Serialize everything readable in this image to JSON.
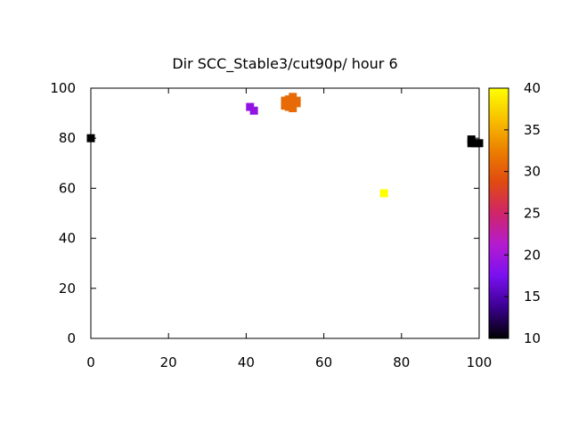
{
  "chart_data": {
    "type": "scatter",
    "title": "Dir SCC_Stable3/cut90p/ hour 6",
    "xlim": [
      0,
      100
    ],
    "ylim": [
      0,
      100
    ],
    "x_ticks": [
      "0",
      "20",
      "40",
      "60",
      "80",
      "100"
    ],
    "y_ticks": [
      "0",
      "20",
      "40",
      "60",
      "80",
      "100"
    ],
    "colorbar": {
      "range": [
        10,
        40
      ],
      "ticks": [
        "10",
        "15",
        "20",
        "25",
        "30",
        "35",
        "40"
      ],
      "palette": [
        "#000000",
        "#3b0090",
        "#7a10f0",
        "#b41bd0",
        "#d0256a",
        "#e04a10",
        "#ec7f00",
        "#f8c000",
        "#ffff00"
      ]
    },
    "grid": false,
    "points": [
      {
        "x": 0,
        "y": 80,
        "value": 10
      },
      {
        "x": 41,
        "y": 92.5,
        "value": 19
      },
      {
        "x": 42,
        "y": 91,
        "value": 19
      },
      {
        "x": 50,
        "y": 93,
        "value": 31
      },
      {
        "x": 50,
        "y": 95,
        "value": 31
      },
      {
        "x": 51,
        "y": 92.5,
        "value": 31
      },
      {
        "x": 51,
        "y": 95.5,
        "value": 31
      },
      {
        "x": 52,
        "y": 92,
        "value": 31
      },
      {
        "x": 52,
        "y": 94,
        "value": 31
      },
      {
        "x": 52,
        "y": 96.5,
        "value": 31
      },
      {
        "x": 53,
        "y": 94,
        "value": 31
      },
      {
        "x": 53,
        "y": 95,
        "value": 31
      },
      {
        "x": 75.5,
        "y": 58,
        "value": 40
      },
      {
        "x": 98,
        "y": 79.5,
        "value": 10
      },
      {
        "x": 98,
        "y": 78,
        "value": 10
      },
      {
        "x": 99,
        "y": 78,
        "value": 10
      },
      {
        "x": 100,
        "y": 78,
        "value": 10
      }
    ]
  }
}
